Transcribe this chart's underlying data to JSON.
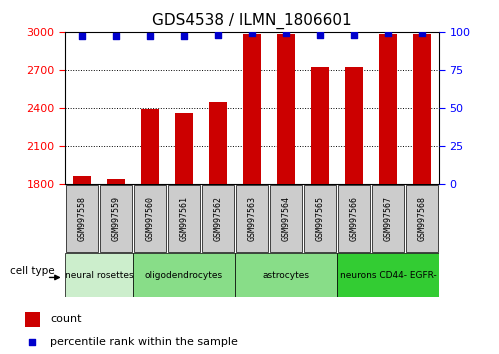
{
  "title": "GDS4538 / ILMN_1806601",
  "samples": [
    "GSM997558",
    "GSM997559",
    "GSM997560",
    "GSM997561",
    "GSM997562",
    "GSM997563",
    "GSM997564",
    "GSM997565",
    "GSM997566",
    "GSM997567",
    "GSM997568"
  ],
  "counts": [
    1860,
    1840,
    2390,
    2360,
    2450,
    2980,
    2980,
    2720,
    2720,
    2980,
    2980
  ],
  "percentiles": [
    97,
    97,
    97,
    97,
    98,
    99,
    99,
    98,
    98,
    99,
    99
  ],
  "ymin": 1800,
  "ymax": 3000,
  "yticks_left": [
    1800,
    2100,
    2400,
    2700,
    3000
  ],
  "yticks_right": [
    0,
    25,
    50,
    75,
    100
  ],
  "bar_color": "#cc0000",
  "dot_color": "#0000cc",
  "cell_type_groups": [
    {
      "label": "neural rosettes",
      "start": 0,
      "end": 1,
      "color": "#cceecc"
    },
    {
      "label": "oligodendrocytes",
      "start": 2,
      "end": 4,
      "color": "#88dd88"
    },
    {
      "label": "astrocytes",
      "start": 5,
      "end": 7,
      "color": "#88dd88"
    },
    {
      "label": "neurons CD44- EGFR-",
      "start": 8,
      "end": 10,
      "color": "#33cc33"
    }
  ],
  "legend_count_label": "count",
  "legend_pct_label": "percentile rank within the sample",
  "cell_type_label": "cell type",
  "bar_width": 0.55,
  "title_fontsize": 11,
  "gray_box_color": "#cccccc",
  "background_color": "#ffffff"
}
